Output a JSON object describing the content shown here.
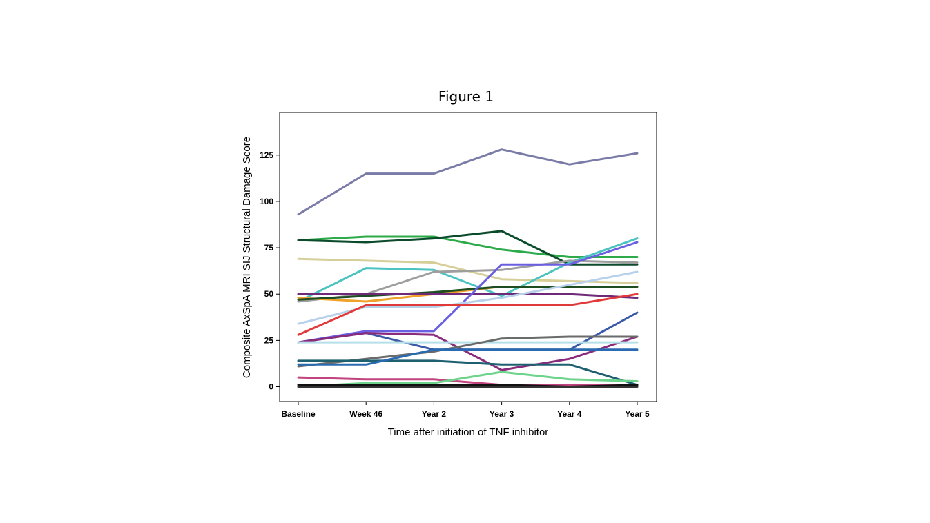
{
  "chart_data": {
    "type": "line",
    "title": "Figure 1",
    "xlabel": "Time after initiation of TNF inhibitor",
    "ylabel": "Composite AxSpA MRI SIJ Structural Damage Score",
    "categories": [
      "Baseline",
      "Week 46",
      "Year 2",
      "Year 3",
      "Year 4",
      "Year 5"
    ],
    "ylim": [
      -8,
      148
    ],
    "yticks": [
      0,
      25,
      50,
      75,
      100,
      125
    ],
    "grid": false,
    "legend": "none",
    "series": [
      {
        "color": "#7b7ba8",
        "values": [
          93,
          115,
          115,
          128,
          120,
          126
        ]
      },
      {
        "color": "#2daa4a",
        "values": [
          79,
          81,
          81,
          74,
          70,
          70
        ]
      },
      {
        "color": "#0b4a2a",
        "values": [
          79,
          78,
          80,
          84,
          66,
          66
        ]
      },
      {
        "color": "#d6cf9a",
        "values": [
          69,
          68,
          67,
          58,
          57,
          56
        ]
      },
      {
        "color": "#4cc3c0",
        "values": [
          46,
          64,
          63,
          49,
          67,
          80
        ]
      },
      {
        "color": "#9e9e9e",
        "values": [
          46,
          50,
          62,
          63,
          68,
          67
        ]
      },
      {
        "color": "#f0a12a",
        "values": [
          48,
          46,
          50,
          54,
          54,
          54
        ]
      },
      {
        "color": "#1f4d22",
        "values": [
          47,
          49,
          51,
          54,
          54,
          54
        ]
      },
      {
        "color": "#6e2a78",
        "values": [
          50,
          50,
          50,
          50,
          50,
          48
        ]
      },
      {
        "color": "#6a5fe0",
        "values": [
          24,
          30,
          30,
          66,
          66,
          78
        ]
      },
      {
        "color": "#b7d1ea",
        "values": [
          34,
          43,
          43,
          48,
          55,
          62
        ]
      },
      {
        "color": "#e03a3a",
        "values": [
          28,
          44,
          44,
          44,
          44,
          50
        ]
      },
      {
        "color": "#3a5aa8",
        "values": [
          24,
          29,
          20,
          20,
          20,
          40
        ]
      },
      {
        "color": "#8a2a7a",
        "values": [
          24,
          29,
          28,
          9,
          15,
          27
        ]
      },
      {
        "color": "#b5e0ea",
        "values": [
          24,
          24,
          24,
          24,
          24,
          24
        ]
      },
      {
        "color": "#6b6b6b",
        "values": [
          11,
          15,
          19,
          26,
          27,
          27
        ]
      },
      {
        "color": "#1e5f70",
        "values": [
          14,
          14,
          14,
          12,
          12,
          1
        ]
      },
      {
        "color": "#2a6ab0",
        "values": [
          12,
          12,
          20,
          20,
          20,
          20
        ]
      },
      {
        "color": "#c2447e",
        "values": [
          5,
          4,
          4,
          1,
          1,
          1
        ]
      },
      {
        "color": "#6ed48c",
        "values": [
          0,
          2,
          2,
          8,
          4,
          3
        ]
      },
      {
        "color": "#111111",
        "values": [
          1,
          1,
          1,
          1,
          0,
          1
        ]
      },
      {
        "color": "#333333",
        "values": [
          0,
          0,
          0,
          0,
          0,
          0
        ]
      }
    ]
  }
}
